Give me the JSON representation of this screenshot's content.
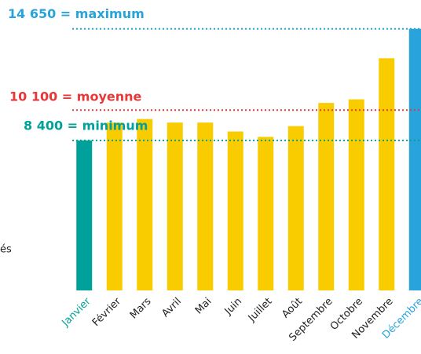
{
  "chart_data": {
    "type": "bar",
    "categories": [
      "Janvier",
      "Février",
      "Mars",
      "Avril",
      "Mai",
      "Juin",
      "Juillet",
      "Août",
      "Septembre",
      "Octobre",
      "Novembre",
      "Décembre"
    ],
    "values": [
      8400,
      9400,
      9600,
      9400,
      9400,
      8900,
      8600,
      9200,
      10500,
      10700,
      13000,
      14650
    ],
    "colors": [
      "#00a19a",
      "#f9cc00",
      "#f9cc00",
      "#f9cc00",
      "#f9cc00",
      "#f9cc00",
      "#f9cc00",
      "#f9cc00",
      "#f9cc00",
      "#f9cc00",
      "#f9cc00",
      "#29a3dc"
    ],
    "label_colors": [
      "#00a19a",
      "#222222",
      "#222222",
      "#222222",
      "#222222",
      "#222222",
      "#222222",
      "#222222",
      "#222222",
      "#222222",
      "#222222",
      "#29a3dc"
    ],
    "ylim": [
      0,
      16000
    ],
    "reference_lines": [
      {
        "value": 14650,
        "label": "14 650 = maximum",
        "color": "#29a3dc"
      },
      {
        "value": 10100,
        "label": "10 100 = moyenne",
        "color": "#e63838"
      },
      {
        "value": 8400,
        "label": "8 400 = minimum",
        "color": "#00a19a"
      }
    ],
    "annotation": "és"
  }
}
